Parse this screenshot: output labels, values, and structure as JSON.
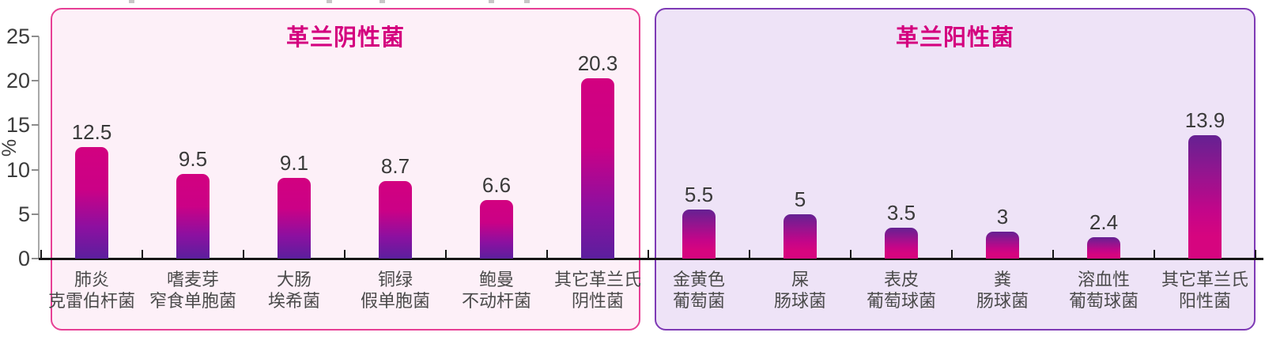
{
  "chart_data": {
    "type": "bar",
    "ylabel": "%",
    "ylim": [
      0,
      25
    ],
    "yticks": [
      0,
      5,
      10,
      15,
      20,
      25
    ],
    "grid": false,
    "legend": "none",
    "groups": [
      {
        "id": "gram-negative",
        "title": "革兰阴性菌",
        "categories": [
          [
            "肺炎",
            "克雷伯杆菌"
          ],
          [
            "嗜麦芽",
            "窄食单胞菌"
          ],
          [
            "大肠",
            "埃希菌"
          ],
          [
            "铜绿",
            "假单胞菌"
          ],
          [
            "鲍曼",
            "不动杆菌"
          ],
          [
            "其它革兰氏",
            "阴性菌"
          ]
        ],
        "values": [
          12.5,
          9.5,
          9.1,
          8.7,
          6.6,
          20.3
        ]
      },
      {
        "id": "gram-positive",
        "title": "革兰阳性菌",
        "categories": [
          [
            "金黄色",
            "葡萄菌"
          ],
          [
            "屎",
            "肠球菌"
          ],
          [
            "表皮",
            "葡萄球菌"
          ],
          [
            "粪",
            "肠球菌"
          ],
          [
            "溶血性",
            "葡萄球菌"
          ],
          [
            "其它革兰氏",
            "阳性菌"
          ]
        ],
        "values": [
          5.5,
          5,
          3.5,
          3,
          2.4,
          13.9
        ]
      }
    ],
    "colors": {
      "title_text": "#d4017f",
      "negative_panel_border": "#e73f95",
      "negative_panel_bg": "#fdf0f8",
      "positive_panel_border": "#7e3ab5",
      "positive_panel_bg": "#eee3f7",
      "bar_gradient_magenta": "#d30180",
      "bar_gradient_purple": "#5c1f9e",
      "axis_text": "#3c3c3c",
      "category_text": "#4a4a4a",
      "baseline": "#161616"
    },
    "top_crop_marks_x": [
      163,
      413,
      480,
      618,
      663
    ]
  }
}
